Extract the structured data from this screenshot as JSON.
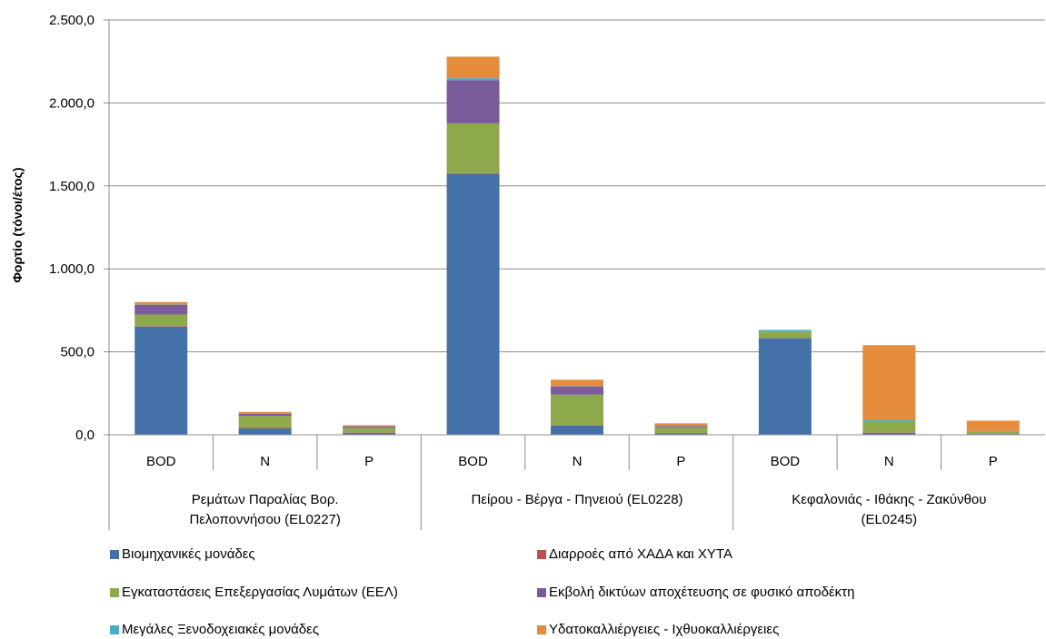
{
  "chart_data": {
    "type": "bar",
    "stacked": true,
    "ylabel": "Φορτίο (τόνοι/έτος)",
    "ylim": [
      0,
      2500
    ],
    "yticks": [
      "0,0",
      "500,0",
      "1.000,0",
      "1.500,0",
      "2.000,0",
      "2.500,0"
    ],
    "grid": true,
    "legend_position": "bottom",
    "groups": [
      {
        "label": "Ρεμάτων Παραλίας Βορ. Πελοποννήσου (EL0227)",
        "label_lines": [
          "Ρεμάτων Παραλίας Βορ.",
          "Πελοποννήσου (EL0227)"
        ]
      },
      {
        "label": "Πείρου - Βέργα - Πηνειού (EL0228)",
        "label_lines": [
          "Πείρου - Βέργα - Πηνειού (EL0228)"
        ]
      },
      {
        "label": "Κεφαλονιάς - Ιθάκης - Ζακύνθου (EL0245)",
        "label_lines": [
          "Κεφαλονιάς - Ιθάκης - Ζακύνθου",
          "(EL0245)"
        ]
      }
    ],
    "categories": [
      "BOD",
      "N",
      "P",
      "BOD",
      "N",
      "P",
      "BOD",
      "N",
      "P"
    ],
    "series": [
      {
        "name": "Βιομηχανικές μονάδες",
        "color": "#4472A8",
        "values": [
          652,
          38,
          12,
          1572,
          55,
          10,
          582,
          12,
          5
        ]
      },
      {
        "name": "Διαρροές από ΧΑΔΑ και ΧΥΤΑ",
        "color": "#C0504D",
        "values": [
          3,
          3,
          2,
          5,
          2,
          1,
          2,
          2,
          1
        ]
      },
      {
        "name": "Εγκαταστάσεις Επεξεργασίας Λυμάτων (ΕΕΛ)",
        "color": "#8EA94B",
        "values": [
          70,
          73,
          28,
          300,
          185,
          35,
          38,
          68,
          15
        ]
      },
      {
        "name": "Εκβολή δικτύων αποχέτευσης σε φυσικό αποδέκτη",
        "color": "#7A5C9A",
        "values": [
          58,
          12,
          8,
          260,
          50,
          7,
          0,
          0,
          0
        ]
      },
      {
        "name": "Μεγάλες Ξενοδοχειακές μονάδες",
        "color": "#4BACC6",
        "values": [
          2,
          2,
          1,
          12,
          2,
          1,
          10,
          8,
          2
        ]
      },
      {
        "name": "Υδατοκαλλιέργειες - Ιχθυοκαλλιέργειες",
        "color": "#E58B3C",
        "values": [
          15,
          10,
          7,
          130,
          38,
          15,
          0,
          450,
          62
        ]
      }
    ]
  }
}
